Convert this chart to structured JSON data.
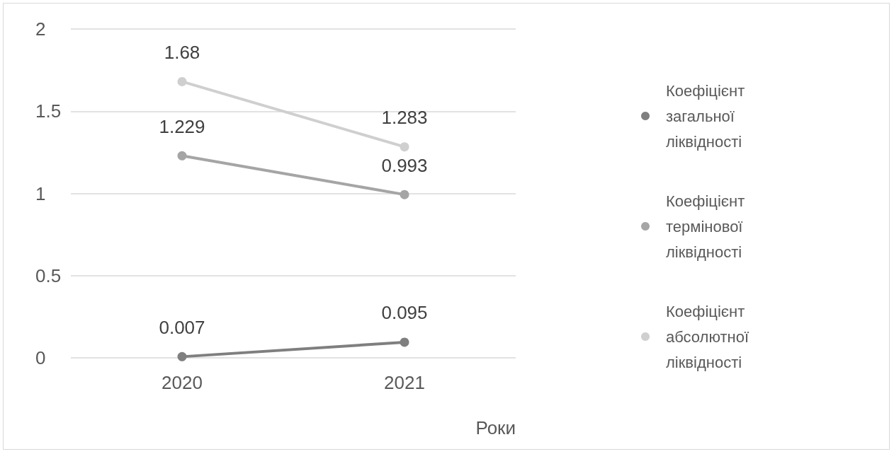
{
  "chart_data": {
    "type": "line",
    "xlabel": "Роки",
    "categories": [
      "2020",
      "2021"
    ],
    "series": [
      {
        "name": "Коефіцієнт загальної ліквідності",
        "color": "#7f7f7f",
        "values": [
          0.007,
          0.095
        ]
      },
      {
        "name": "Коефіцієнт термінової ліквідності",
        "color": "#a5a5a5",
        "values": [
          1.229,
          0.993
        ]
      },
      {
        "name": "Коефіцієнт абсолютної ліквідності",
        "color": "#cfcfcf",
        "values": [
          1.68,
          1.283
        ]
      }
    ],
    "ylim": [
      0,
      2
    ],
    "yticks": [
      0,
      0.5,
      1,
      1.5,
      2
    ],
    "grid": "y",
    "legend": "right",
    "marker": "circle",
    "line_style": "solid",
    "data_labels": true
  }
}
